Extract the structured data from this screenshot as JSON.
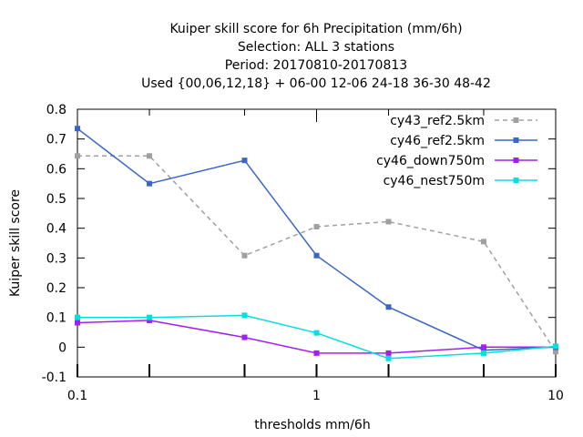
{
  "chart_data": {
    "type": "line",
    "title_lines": [
      "Kuiper skill score  for 6h Precipitation (mm/6h)",
      "Selection: ALL      3 stations",
      "Period: 20170810-20170813",
      "Used {00,06,12,18} + 06-00 12-06 24-18 36-30 48-42"
    ],
    "xlabel": "thresholds mm/6h",
    "ylabel": "Kuiper skill score",
    "xscale": "log",
    "xlim": [
      0.1,
      10
    ],
    "ylim": [
      -0.1,
      0.8
    ],
    "xticks": [
      {
        "value": 0.1,
        "label": "0.1"
      },
      {
        "value": 1,
        "label": "1"
      },
      {
        "value": 10,
        "label": "10"
      }
    ],
    "xminor": [
      0.2,
      0.5,
      2,
      5
    ],
    "yticks": [
      {
        "value": -0.1,
        "label": "-0.1"
      },
      {
        "value": 0,
        "label": "0"
      },
      {
        "value": 0.1,
        "label": "0.1"
      },
      {
        "value": 0.2,
        "label": "0.2"
      },
      {
        "value": 0.3,
        "label": "0.3"
      },
      {
        "value": 0.4,
        "label": "0.4"
      },
      {
        "value": 0.5,
        "label": "0.5"
      },
      {
        "value": 0.6,
        "label": "0.6"
      },
      {
        "value": 0.7,
        "label": "0.7"
      },
      {
        "value": 0.8,
        "label": "0.8"
      }
    ],
    "legend_position": "top-right",
    "series": [
      {
        "name": "cy43_ref2.5km",
        "color": "#a0a0a0",
        "dashed": true,
        "x": [
          0.1,
          0.2,
          0.5,
          1,
          2,
          5,
          10
        ],
        "y": [
          0.643,
          0.643,
          0.308,
          0.405,
          0.422,
          0.355,
          -0.015
        ]
      },
      {
        "name": "cy46_ref2.5km",
        "color": "#3a66c8",
        "dashed": false,
        "x": [
          0.1,
          0.2,
          0.5,
          1,
          2,
          5,
          10
        ],
        "y": [
          0.735,
          0.55,
          0.628,
          0.308,
          0.135,
          -0.01,
          0.0
        ]
      },
      {
        "name": "cy46_down750m",
        "color": "#a020f0",
        "dashed": false,
        "x": [
          0.1,
          0.2,
          0.5,
          1,
          2,
          5,
          10
        ],
        "y": [
          0.082,
          0.09,
          0.033,
          -0.02,
          -0.02,
          0.0,
          0.0
        ]
      },
      {
        "name": "cy46_nest750m",
        "color": "#00e0e0",
        "dashed": false,
        "x": [
          0.1,
          0.2,
          0.5,
          1,
          2,
          5,
          10
        ],
        "y": [
          0.1,
          0.1,
          0.107,
          0.048,
          -0.038,
          -0.02,
          0.003
        ]
      }
    ]
  }
}
